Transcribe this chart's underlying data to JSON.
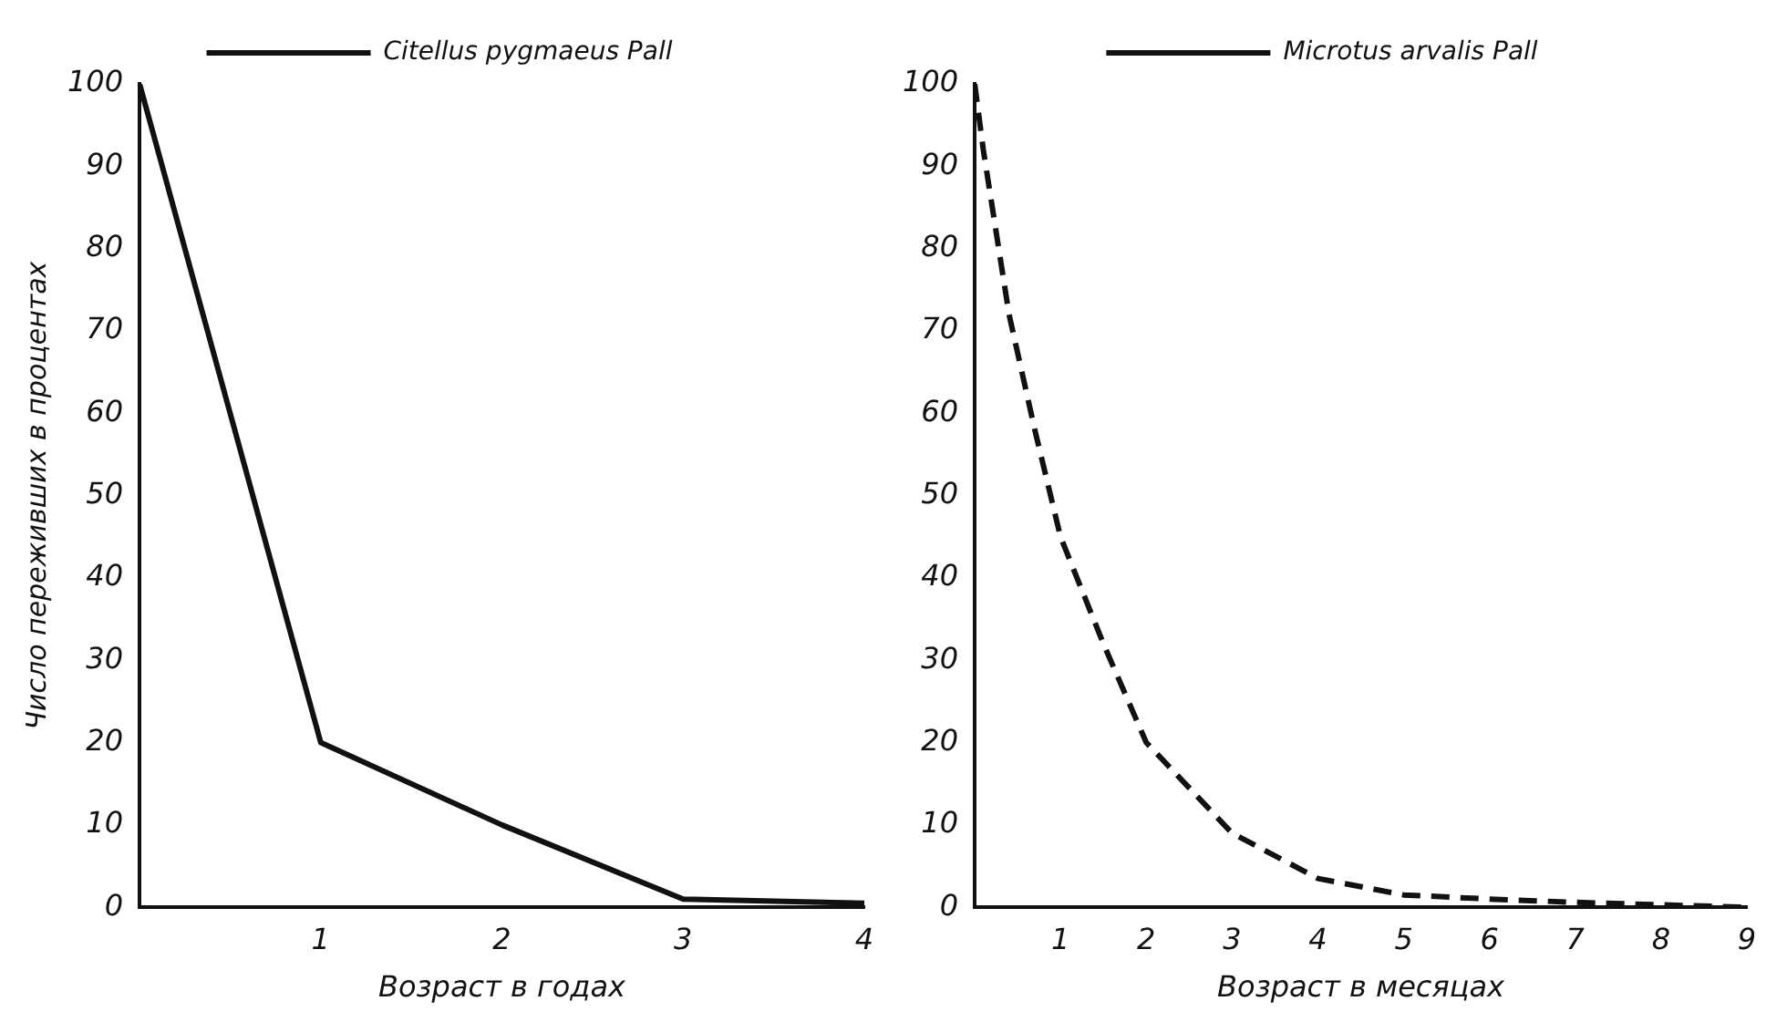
{
  "chart_data": [
    {
      "type": "line",
      "ylabel": "Число переживших в процентах",
      "xlabel": "Возраст в годах",
      "xlim": [
        0,
        4
      ],
      "xticks": [
        {
          "value": 0,
          "label": null
        },
        1,
        2,
        3,
        4
      ],
      "ylim": [
        0,
        100
      ],
      "yticks": [
        0,
        10,
        20,
        30,
        40,
        50,
        60,
        70,
        80,
        90,
        100
      ],
      "grid": false,
      "legend": "top",
      "marker": "none",
      "series": [
        {
          "name": "Citellus pygmaeus Pall",
          "color": "#111111",
          "line_style": "solid",
          "x": [
            0,
            1,
            2,
            3,
            4
          ],
          "values": [
            100,
            20,
            10,
            1,
            0.5
          ]
        }
      ]
    },
    {
      "type": "line",
      "xlabel": "Возраст в месяцах",
      "xlim": [
        0,
        9
      ],
      "xticks": [
        {
          "value": 0,
          "label": null
        },
        1,
        2,
        3,
        4,
        5,
        6,
        7,
        8,
        9
      ],
      "ylim": [
        0,
        100
      ],
      "yticks": [
        0,
        10,
        20,
        30,
        40,
        50,
        60,
        70,
        80,
        90,
        100
      ],
      "grid": false,
      "legend": "top",
      "marker": "none",
      "series": [
        {
          "name": "Microtus arvalis Pall",
          "color": "#111111",
          "line_style": "dashed",
          "x": [
            0,
            0.1,
            0.4,
            0.7,
            1,
            1.5,
            2,
            3,
            4,
            5,
            6,
            7,
            8,
            9
          ],
          "values": [
            100,
            92,
            72,
            58,
            45,
            32,
            20,
            9,
            3.5,
            1.5,
            1,
            0.6,
            0.3,
            0
          ]
        }
      ]
    }
  ]
}
